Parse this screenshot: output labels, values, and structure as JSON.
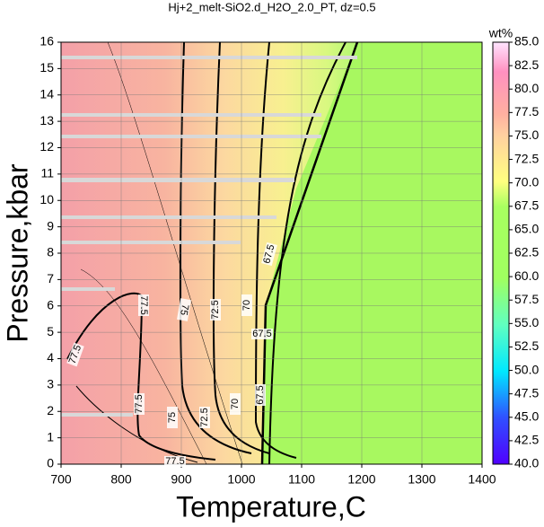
{
  "chart_data": {
    "type": "contour",
    "title": "Hj+2_melt-SiO2.d_H2O_2.0_PT, dz=0.5",
    "xlabel": "Temperature,C",
    "ylabel": "Pressure,kbar",
    "xlim": [
      700,
      1400
    ],
    "xticks": [
      700,
      800,
      900,
      1000,
      1100,
      1200,
      1300,
      1400
    ],
    "ylim": [
      0,
      16
    ],
    "yticks": [
      0,
      1,
      2,
      3,
      4,
      5,
      6,
      7,
      8,
      9,
      10,
      11,
      12,
      13,
      14,
      15,
      16
    ],
    "grid": true,
    "colorbar": {
      "label": "wt%",
      "lim": [
        40,
        85
      ],
      "ticks": [
        {
          "value": 40,
          "label": "40.0"
        },
        {
          "value": 42.5,
          "label": "42.5"
        },
        {
          "value": 45,
          "label": "45.0"
        },
        {
          "value": 47.5,
          "label": "47.5"
        },
        {
          "value": 50,
          "label": "50.0"
        },
        {
          "value": 52.5,
          "label": "52.5"
        },
        {
          "value": 55,
          "label": "55.0"
        },
        {
          "value": 57.5,
          "label": "57.5"
        },
        {
          "value": 60,
          "label": "60.0"
        },
        {
          "value": 62.5,
          "label": "62.5"
        },
        {
          "value": 65,
          "label": "65.0"
        },
        {
          "value": 67.5,
          "label": "67.5"
        },
        {
          "value": 70,
          "label": "70.0"
        },
        {
          "value": 72.5,
          "label": "72.5"
        },
        {
          "value": 75,
          "label": "75.0"
        },
        {
          "value": 77.5,
          "label": "77.5"
        },
        {
          "value": 80,
          "label": "80.0"
        },
        {
          "value": 82.5,
          "label": "82.5"
        },
        {
          "value": 85,
          "label": "85.0"
        }
      ]
    },
    "contour_labels": [
      {
        "value": 77.5,
        "label": "77.5"
      },
      {
        "value": 77.5,
        "label": "77.5"
      },
      {
        "value": 75,
        "label": "75"
      },
      {
        "value": 72.5,
        "label": "72.5"
      },
      {
        "value": 70,
        "label": "70"
      },
      {
        "value": 67.5,
        "label": "67.5"
      },
      {
        "value": 67.5,
        "label": "67.5"
      },
      {
        "value": 77.5,
        "label": "77.5"
      },
      {
        "value": 75,
        "label": "75"
      },
      {
        "value": 72.5,
        "label": "72.5"
      },
      {
        "value": 70,
        "label": "70"
      },
      {
        "value": 67.5,
        "label": "67.5"
      },
      {
        "value": 77.5,
        "label": "77.5"
      }
    ]
  }
}
